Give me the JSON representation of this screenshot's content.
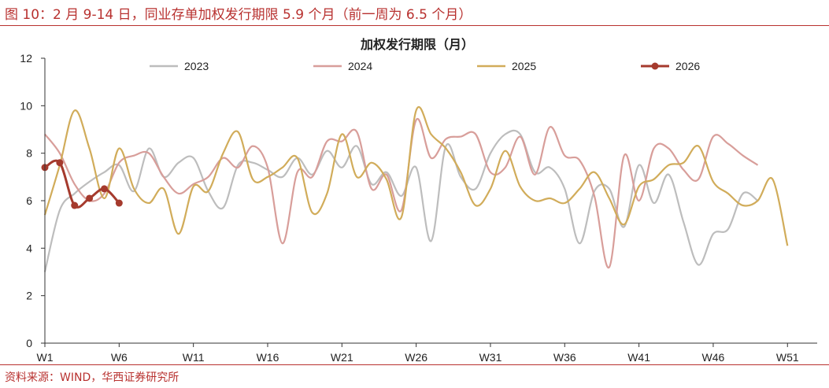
{
  "figure": {
    "title": "图 10：2 月 9-14 日，同业存单加权发行期限 5.9 个月（前一周为 6.5 个月）",
    "source": "资料来源：WIND，华西证券研究所"
  },
  "chart_data": {
    "type": "line",
    "title": "加权发行期限（月）",
    "xlabel": "",
    "ylabel": "",
    "ylim": [
      0,
      12
    ],
    "yticks": [
      0,
      2,
      4,
      6,
      8,
      10,
      12
    ],
    "xlim": [
      1,
      53
    ],
    "xticks": [
      {
        "week": 1,
        "label": "W1"
      },
      {
        "week": 6,
        "label": "W6"
      },
      {
        "week": 11,
        "label": "W11"
      },
      {
        "week": 16,
        "label": "W16"
      },
      {
        "week": 21,
        "label": "W21"
      },
      {
        "week": 26,
        "label": "W26"
      },
      {
        "week": 31,
        "label": "W31"
      },
      {
        "week": 36,
        "label": "W36"
      },
      {
        "week": 41,
        "label": "W41"
      },
      {
        "week": 46,
        "label": "W46"
      },
      {
        "week": 51,
        "label": "W51"
      }
    ],
    "grid": false,
    "legend_position": "top",
    "series": [
      {
        "name": "2023",
        "color": "#bdbdbd",
        "markers": false,
        "values": [
          3.0,
          5.6,
          6.3,
          6.8,
          7.2,
          7.5,
          6.4,
          8.2,
          7.0,
          7.6,
          7.8,
          6.4,
          5.7,
          7.5,
          7.6,
          7.3,
          7.0,
          7.8,
          7.1,
          8.1,
          7.4,
          8.3,
          6.7,
          7.2,
          6.2,
          7.4,
          4.3,
          8.3,
          7.0,
          6.5,
          8.0,
          8.8,
          8.8,
          7.2,
          7.4,
          6.5,
          4.2,
          6.4,
          6.5,
          4.9,
          7.5,
          5.9,
          7.1,
          5.1,
          3.3,
          4.6,
          4.8,
          6.3,
          6.0
        ]
      },
      {
        "name": "2024",
        "color": "#d89e9a",
        "markers": false,
        "values": [
          8.8,
          8.0,
          6.7,
          6.0,
          6.3,
          7.6,
          7.9,
          8.0,
          7.0,
          6.3,
          6.7,
          7.0,
          7.8,
          7.4,
          8.3,
          7.4,
          4.2,
          7.2,
          7.0,
          8.5,
          8.5,
          8.9,
          6.5,
          7.1,
          5.6,
          9.4,
          7.8,
          8.6,
          8.7,
          8.8,
          7.2,
          7.4,
          8.7,
          7.1,
          9.1,
          7.9,
          7.7,
          6.2,
          3.2,
          7.9,
          6.0,
          8.2,
          8.2,
          7.3,
          6.9,
          8.7,
          8.4,
          7.9,
          7.5
        ]
      },
      {
        "name": "2025",
        "color": "#d1ac5a",
        "markers": false,
        "values": [
          5.4,
          7.5,
          9.8,
          8.2,
          6.1,
          8.2,
          6.5,
          5.9,
          6.5,
          4.6,
          6.6,
          6.4,
          8.0,
          8.9,
          6.9,
          7.0,
          7.4,
          7.8,
          5.5,
          6.3,
          8.8,
          7.0,
          7.6,
          6.9,
          5.3,
          9.8,
          8.8,
          8.2,
          7.2,
          5.8,
          6.5,
          8.1,
          6.6,
          6.0,
          6.1,
          5.9,
          6.5,
          7.2,
          6.1,
          5.0,
          6.6,
          6.9,
          7.5,
          7.6,
          8.3,
          6.8,
          6.3,
          5.8,
          6.0,
          6.9,
          4.1
        ]
      },
      {
        "name": "2026",
        "color": "#a53a2d",
        "markers": true,
        "values": [
          7.4,
          7.6,
          5.8,
          6.1,
          6.5,
          5.9
        ]
      }
    ]
  }
}
